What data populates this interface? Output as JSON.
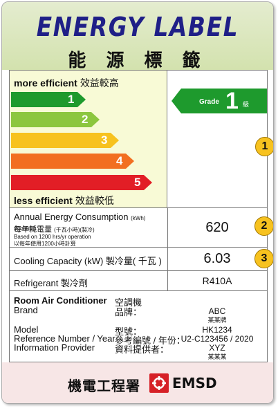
{
  "header": {
    "title": "ENERGY LABEL",
    "title_zh": "能 源 標 籤"
  },
  "rating": {
    "more_efficient": "more efficient",
    "more_efficient_zh": "效益較高",
    "less_efficient": "less efficient",
    "less_efficient_zh": "效益較低",
    "bars": [
      {
        "num": "1",
        "color": "#1e9a2d"
      },
      {
        "num": "2",
        "color": "#8cc63f"
      },
      {
        "num": "3",
        "color": "#f7c21f"
      },
      {
        "num": "4",
        "color": "#f26f21"
      },
      {
        "num": "5",
        "color": "#e21e26"
      }
    ],
    "grade_label": "Grade",
    "grade_value": "1",
    "grade_zh": "級",
    "grade_color": "#1e9a2d"
  },
  "badges": {
    "b1": "1",
    "b2": "2",
    "b3": "3",
    "color": "#f7c21f"
  },
  "consumption": {
    "label": "Annual Energy Consumption",
    "unit": "(kWh)(Cooling)",
    "label_zh": "每年耗電量",
    "unit_zh": "(千瓦小時)(製冷)",
    "note": "Based on 1200 hrs/yr operation",
    "note_zh": "以每年使用1200小時計算",
    "value": "620"
  },
  "capacity": {
    "label": "Cooling Capacity (kW) 製冷量( 千瓦 )",
    "value": "6.03"
  },
  "refrigerant": {
    "label": "Refrigerant 製冷劑",
    "value": "R410A"
  },
  "info": {
    "type_label": "Room Air Conditioner",
    "type_zh": "空調機",
    "brand_label": "Brand",
    "brand_zh": "品牌：",
    "brand_value": "ABC",
    "brand_value_zh": "某某牌",
    "model_label": "Model",
    "model_zh": "型號：",
    "model_value": "HK1234",
    "ref_label": "Reference Number / Year",
    "ref_zh": "參考編號 / 年份：",
    "ref_value": "U2-C123456 / 2020",
    "provider_label": "Information Provider",
    "provider_zh": "資料提供者：",
    "provider_value": "XYZ",
    "provider_value_zh": "某某某"
  },
  "footer": {
    "dept_zh": "機電工程署",
    "dept_abbr": "EMSD"
  }
}
